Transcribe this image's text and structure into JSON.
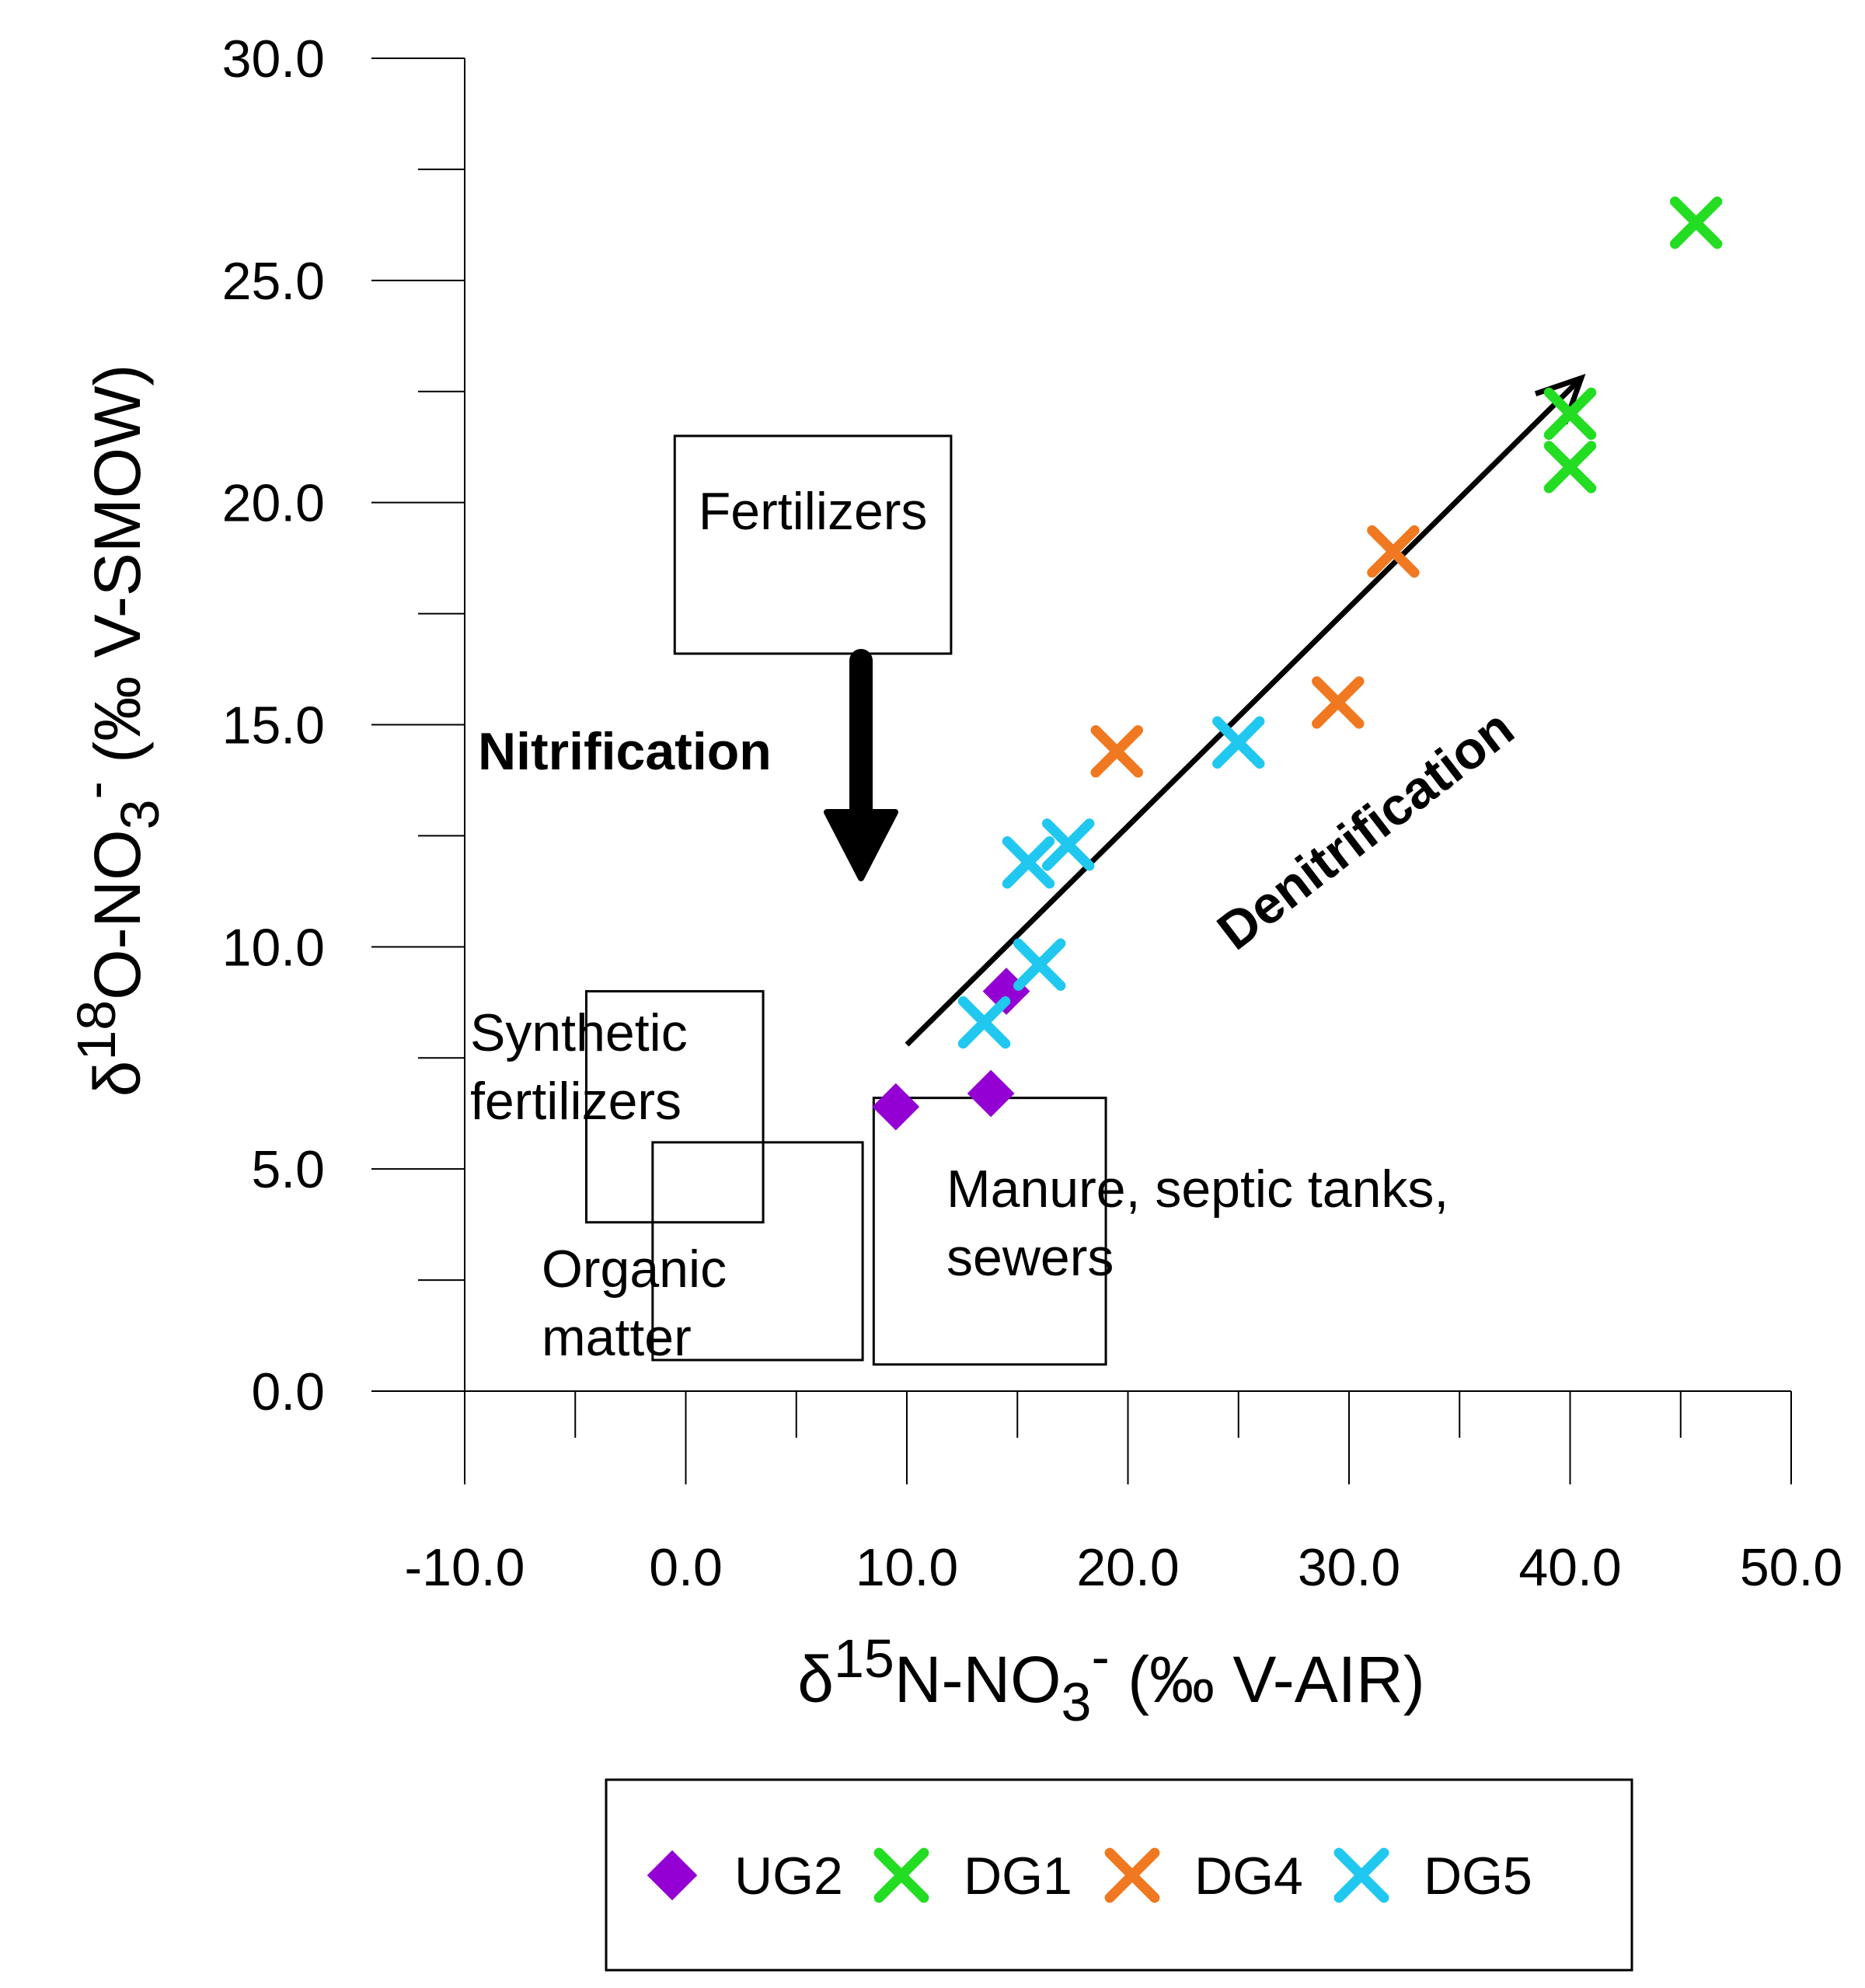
{
  "chart_data": {
    "type": "scatter",
    "title": "",
    "xlabel": {
      "prefix": "δ",
      "sup": "15",
      "main": "N-NO",
      "sub": "3",
      "sup2": "-",
      "suffix": " (‰ V-AIR)"
    },
    "ylabel": {
      "prefix": "δ",
      "sup": "18",
      "main": "O-NO",
      "sub": "3",
      "sup2": "-",
      "suffix": " (‰ V-SMOW)"
    },
    "xlim": [
      -10,
      50
    ],
    "ylim": [
      0,
      30
    ],
    "x_ticks": [
      "-10.0",
      "0.0",
      "10.0",
      "20.0",
      "30.0",
      "40.0",
      "50.0"
    ],
    "y_ticks": [
      "0.0",
      "5.0",
      "10.0",
      "15.0",
      "20.0",
      "25.0",
      "30.0"
    ],
    "series": [
      {
        "name": "UG2",
        "marker": "diamond",
        "color": "#9400D3",
        "points": [
          [
            9.5,
            6.4
          ],
          [
            13.8,
            6.7
          ],
          [
            14.5,
            9.0
          ]
        ]
      },
      {
        "name": "DG1",
        "marker": "x",
        "color": "#22DD22",
        "points": [
          [
            45.7,
            26.3
          ],
          [
            40.0,
            22.0
          ],
          [
            40.0,
            20.8
          ]
        ]
      },
      {
        "name": "DG4",
        "marker": "x",
        "color": "#F07820",
        "points": [
          [
            32.0,
            18.9
          ],
          [
            29.5,
            15.5
          ],
          [
            19.5,
            14.4
          ]
        ]
      },
      {
        "name": "DG5",
        "marker": "x",
        "color": "#20C8F0",
        "points": [
          [
            25.0,
            14.6
          ],
          [
            17.3,
            12.3
          ],
          [
            15.5,
            11.9
          ],
          [
            16.0,
            9.6
          ],
          [
            13.5,
            8.3
          ]
        ]
      }
    ],
    "regions": [
      {
        "name": "Fertilizers",
        "lines": [
          "Fertilizers"
        ],
        "x": [
          -0.5,
          12.0
        ],
        "y": [
          16.6,
          21.5
        ]
      },
      {
        "name": "Synthetic fertilizers",
        "lines": [
          "Synthetic",
          "fertilizers"
        ],
        "x": [
          -4.5,
          3.5
        ],
        "y": [
          3.8,
          9.0
        ]
      },
      {
        "name": "Organic matter",
        "lines": [
          "Organic",
          "matter"
        ],
        "x": [
          -1.5,
          8.0
        ],
        "y": [
          0.7,
          5.6
        ]
      },
      {
        "name": "Manure, septic tanks, sewers",
        "lines": [
          "Manure, septic tanks,",
          "sewers"
        ],
        "x": [
          8.5,
          19.0
        ],
        "y": [
          0.6,
          6.6
        ]
      }
    ],
    "annotations": [
      {
        "name": "Nitrification",
        "text": "Nitrification"
      },
      {
        "name": "Denitrification",
        "text": "Denitrification"
      }
    ],
    "legend": {
      "position": "bottom",
      "entries": [
        "UG2",
        "DG1",
        "DG4",
        "DG5"
      ]
    }
  }
}
